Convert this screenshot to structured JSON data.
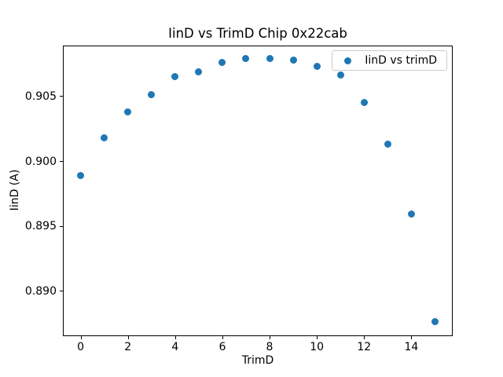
{
  "chart_data": {
    "type": "scatter",
    "title": "IinD vs TrimD Chip 0x22cab",
    "xlabel": "TrimD",
    "ylabel": "IinD (A)",
    "series": [
      {
        "name": "IinD vs trimD",
        "color": "#1f77b4",
        "x": [
          0,
          1,
          2,
          3,
          4,
          5,
          6,
          7,
          8,
          9,
          10,
          11,
          12,
          13,
          14,
          15
        ],
        "y": [
          0.8989,
          0.9018,
          0.9038,
          0.9051,
          0.9065,
          0.9069,
          0.9076,
          0.9079,
          0.9079,
          0.9078,
          0.9073,
          0.9066,
          0.9045,
          0.9013,
          0.8959,
          0.8876
        ]
      }
    ],
    "xlim": [
      -0.75,
      15.75
    ],
    "ylim": [
      0.8865,
      0.9089
    ],
    "xticks": [
      0,
      2,
      4,
      6,
      8,
      10,
      12,
      14
    ],
    "xtick_labels": [
      "0",
      "2",
      "4",
      "6",
      "8",
      "10",
      "12",
      "14"
    ],
    "yticks": [
      0.89,
      0.895,
      0.9,
      0.905
    ],
    "ytick_labels": [
      "0.890",
      "0.895",
      "0.900",
      "0.905"
    ],
    "legend": {
      "label": "IinD vs trimD",
      "position": "upper right",
      "marker_color": "#1f77b4"
    },
    "grid": false,
    "background": "#ffffff"
  }
}
